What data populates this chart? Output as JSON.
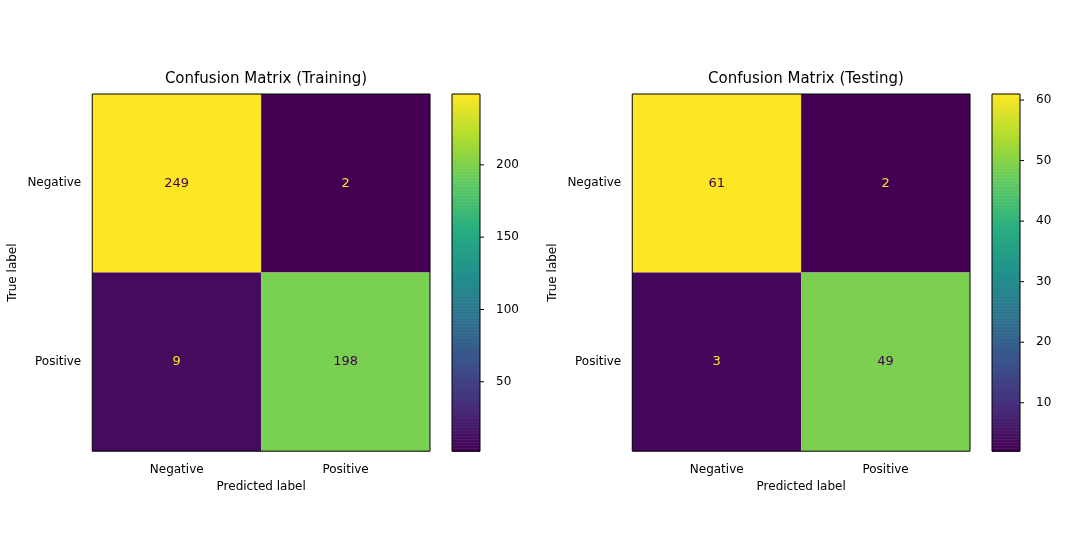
{
  "chart_data": [
    {
      "type": "heatmap",
      "title": "Confusion Matrix (Training)",
      "xlabel": "Predicted label",
      "ylabel": "True label",
      "categories": [
        "Negative",
        "Positive"
      ],
      "y_categories": [
        "Negative",
        "Positive"
      ],
      "cells": [
        [
          249,
          2
        ],
        [
          9,
          198
        ]
      ],
      "clim": [
        2,
        249
      ],
      "cticks": [
        50,
        100,
        150,
        200
      ],
      "data_labels": true
    },
    {
      "type": "heatmap",
      "title": "Confusion Matrix (Testing)",
      "xlabel": "Predicted label",
      "ylabel": "True label",
      "categories": [
        "Negative",
        "Positive"
      ],
      "y_categories": [
        "Negative",
        "Positive"
      ],
      "cells": [
        [
          61,
          2
        ],
        [
          3,
          49
        ]
      ],
      "clim": [
        2,
        61
      ],
      "cticks": [
        10,
        20,
        30,
        40,
        50,
        60
      ],
      "data_labels": true
    }
  ]
}
